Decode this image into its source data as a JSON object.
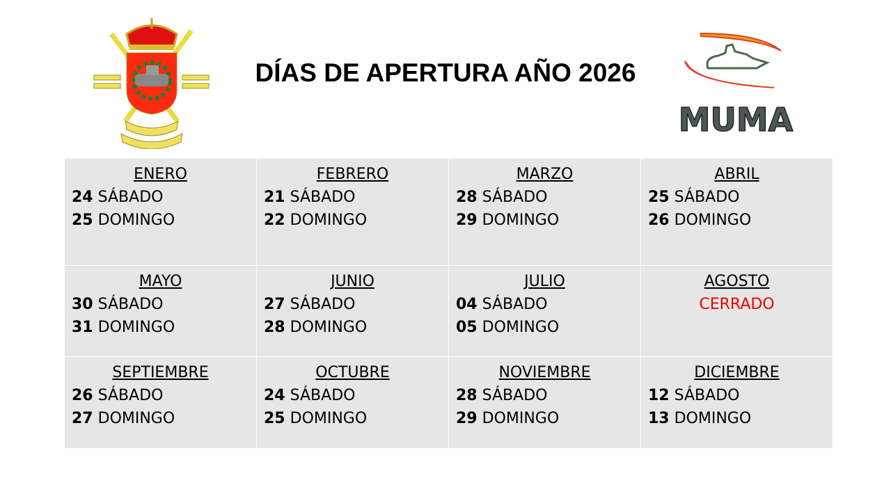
{
  "title": "DÍAS DE APERTURA AÑO 2026",
  "logos": {
    "left": "coat-of-arms",
    "right": {
      "name": "muma-logo",
      "text": "MUMA"
    }
  },
  "colors": {
    "closed": "#ee0000",
    "cell_bg": "#e6e6e6"
  },
  "months": [
    {
      "name": "ENERO",
      "days": [
        {
          "num": "24",
          "label": "SÁBADO"
        },
        {
          "num": "25",
          "label": "DOMINGO"
        }
      ]
    },
    {
      "name": "FEBRERO",
      "days": [
        {
          "num": "21",
          "label": "SÁBADO"
        },
        {
          "num": "22",
          "label": "DOMINGO"
        }
      ]
    },
    {
      "name": "MARZO",
      "days": [
        {
          "num": "28",
          "label": "SÁBADO"
        },
        {
          "num": "29",
          "label": "DOMINGO"
        }
      ]
    },
    {
      "name": "ABRIL",
      "days": [
        {
          "num": "25",
          "label": "SÁBADO"
        },
        {
          "num": "26",
          "label": "DOMINGO"
        }
      ]
    },
    {
      "name": "MAYO",
      "days": [
        {
          "num": "30",
          "label": "SÁBADO"
        },
        {
          "num": "31",
          "label": "DOMINGO"
        }
      ]
    },
    {
      "name": "JUNIO",
      "days": [
        {
          "num": "27",
          "label": "SÁBADO"
        },
        {
          "num": "28",
          "label": "DOMINGO"
        }
      ]
    },
    {
      "name": "JULIO",
      "days": [
        {
          "num": "04",
          "label": "SÁBADO"
        },
        {
          "num": "05",
          "label": "DOMINGO"
        }
      ]
    },
    {
      "name": "AGOSTO",
      "closed": "CERRADO",
      "days": []
    },
    {
      "name": "SEPTIEMBRE",
      "days": [
        {
          "num": "26",
          "label": "SÁBADO"
        },
        {
          "num": "27",
          "label": "DOMINGO"
        }
      ]
    },
    {
      "name": "OCTUBRE",
      "days": [
        {
          "num": "24",
          "label": "SÁBADO"
        },
        {
          "num": "25",
          "label": "DOMINGO"
        }
      ]
    },
    {
      "name": "NOVIEMBRE",
      "days": [
        {
          "num": "28",
          "label": "SÁBADO"
        },
        {
          "num": "29",
          "label": "DOMINGO"
        }
      ]
    },
    {
      "name": "DICIEMBRE",
      "days": [
        {
          "num": "12",
          "label": "SÁBADO"
        },
        {
          "num": "13",
          "label": "DOMINGO"
        }
      ]
    }
  ]
}
